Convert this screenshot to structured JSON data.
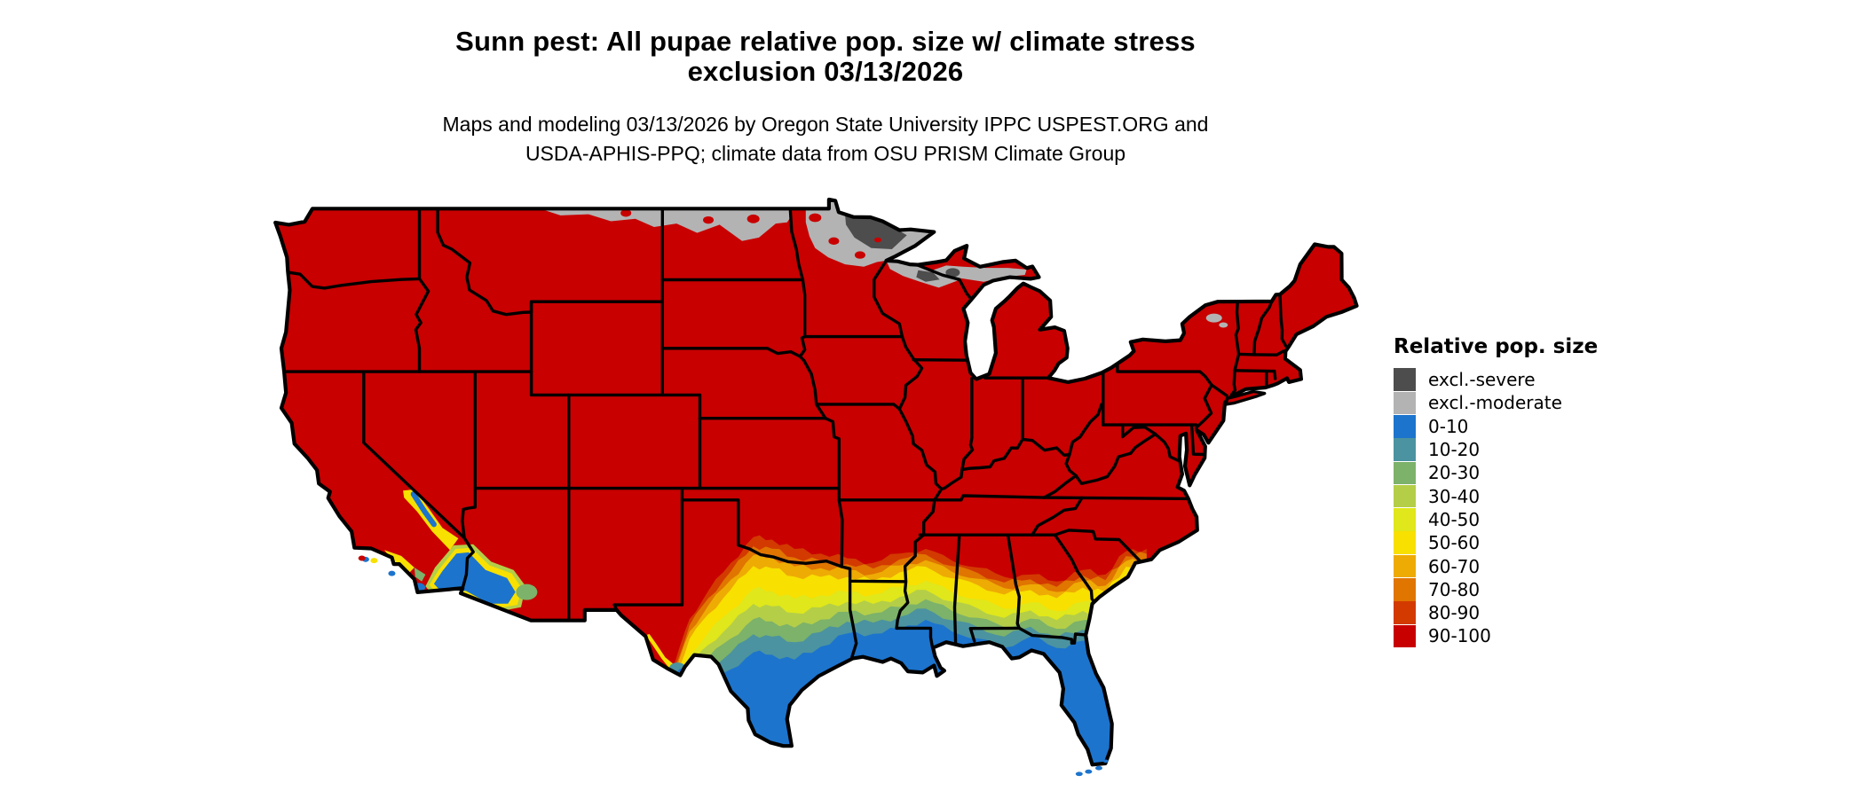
{
  "title": {
    "lines": [
      "Sunn pest: All pupae relative pop. size w/ climate stress",
      "exclusion 03/13/2026"
    ]
  },
  "subtitle": {
    "lines": [
      "Maps and modeling 03/13/2026 by Oregon State University IPPC USPEST.ORG and",
      "USDA-APHIS-PPQ; climate data from OSU PRISM Climate Group"
    ]
  },
  "legend": {
    "title": "Relative pop. size",
    "items": [
      {
        "label": "excl.-severe",
        "color": "#4d4d4d"
      },
      {
        "label": "excl.-moderate",
        "color": "#b3b3b3"
      },
      {
        "label": "0-10",
        "color": "#1c74cd"
      },
      {
        "label": "10-20",
        "color": "#4b93a0"
      },
      {
        "label": "20-30",
        "color": "#7cb26a"
      },
      {
        "label": "30-40",
        "color": "#b4ce48"
      },
      {
        "label": "40-50",
        "color": "#e0e71b"
      },
      {
        "label": "50-60",
        "color": "#f8e000"
      },
      {
        "label": "60-70",
        "color": "#eeab04"
      },
      {
        "label": "70-80",
        "color": "#e07500"
      },
      {
        "label": "80-90",
        "color": "#d23a00"
      },
      {
        "label": "90-100",
        "color": "#c80000"
      }
    ]
  },
  "chart_data": {
    "type": "choropleth_map",
    "region": "Continental United States (lower 48 states)",
    "variable": "Relative pop. size",
    "categories": [
      "excl.-severe",
      "excl.-moderate",
      "0-10",
      "10-20",
      "20-30",
      "30-40",
      "40-50",
      "50-60",
      "60-70",
      "70-80",
      "80-90",
      "90-100"
    ],
    "legend_position": "right",
    "region_values": {
      "most_of_us_interior_west_midwest_northeast": "90-100",
      "northern_border_montana_north_dakota_strip": "excl.-moderate",
      "northern_minnesota_northern_wisconsin_upper_michigan": "excl.-moderate",
      "northeastern_minnesota_north_wisconsin_pockets": "excl.-severe",
      "southern_texas_and_gulf_coast": "0-10",
      "florida_peninsula": "0-10",
      "central_texas_to_georgia_transition_bands": "10-20 through 80-90 south-to-north gradient",
      "southwest_arizona_salton_basin_california": "0-10 with 30-60 mottled fringe",
      "south_carolina_coast": "60-80 patch",
      "borders": "black state outlines"
    }
  }
}
